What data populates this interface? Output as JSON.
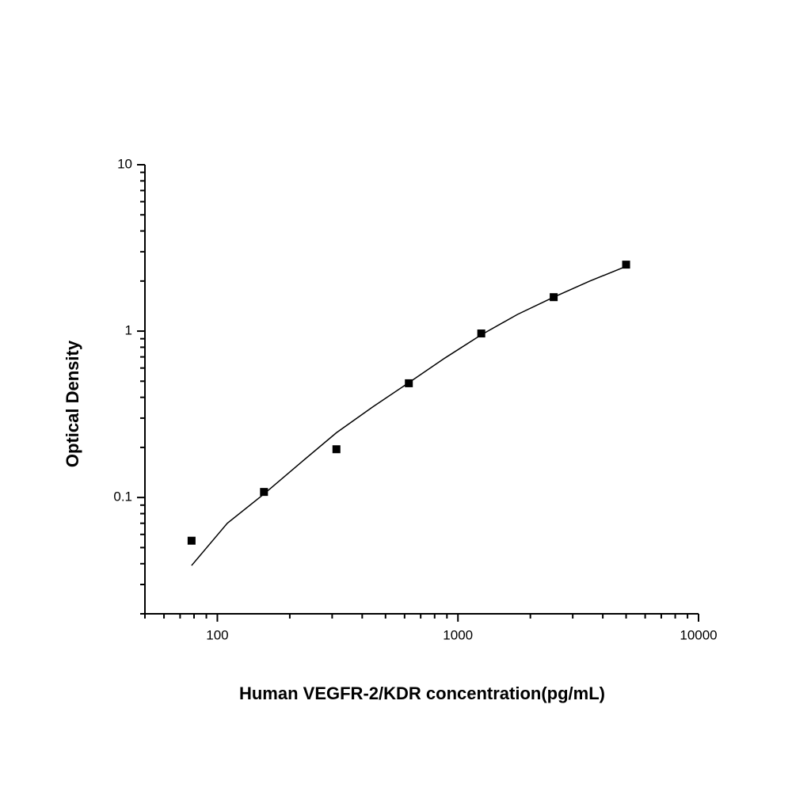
{
  "chart_data": {
    "type": "scatter",
    "x_label": "Human VEGFR-2/KDR concentration(pg/mL)",
    "y_label": "Optical Density",
    "xscale": "log",
    "yscale": "log",
    "xlim": [
      50,
      10000
    ],
    "ylim": [
      0.02,
      10
    ],
    "xticks": [
      100,
      1000,
      10000
    ],
    "yticks": [
      0.1,
      1,
      10
    ],
    "xminorticks": [
      50,
      60,
      70,
      80,
      90,
      200,
      300,
      400,
      500,
      600,
      700,
      800,
      900,
      2000,
      3000,
      4000,
      5000,
      6000,
      7000,
      8000,
      9000
    ],
    "yminorticks": [
      0.02,
      0.03,
      0.04,
      0.05,
      0.06,
      0.07,
      0.08,
      0.09,
      0.2,
      0.3,
      0.4,
      0.5,
      0.6,
      0.7,
      0.8,
      0.9,
      2,
      3,
      4,
      5,
      6,
      7,
      8,
      9
    ],
    "series": [
      {
        "kind": "points",
        "color": "#000000",
        "x": [
          78.125,
          156.25,
          312.5,
          625,
          1250,
          2500,
          5000
        ],
        "values": [
          0.055,
          0.108,
          0.195,
          0.486,
          0.968,
          1.6,
          2.51
        ]
      },
      {
        "kind": "curve",
        "color": "#000000",
        "x": [
          78.125,
          110,
          156.25,
          220,
          312.5,
          442,
          625,
          884,
          1250,
          1768,
          2500,
          3536,
          5000
        ],
        "values": [
          0.039,
          0.07,
          0.105,
          0.16,
          0.245,
          0.35,
          0.49,
          0.69,
          0.95,
          1.26,
          1.6,
          2.0,
          2.45
        ]
      }
    ]
  }
}
